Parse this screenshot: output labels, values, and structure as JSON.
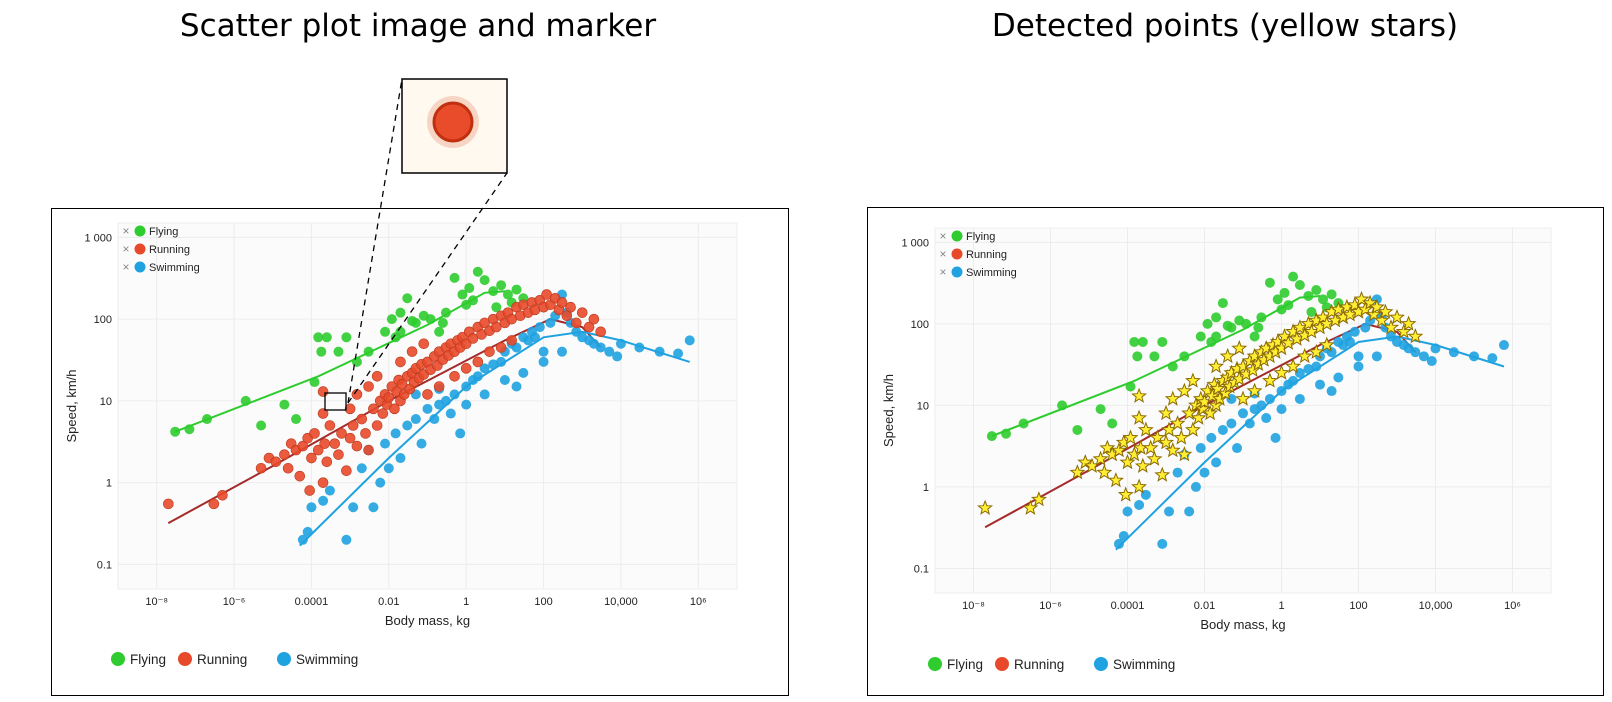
{
  "titles": {
    "left": "Scatter plot image and marker",
    "right": "Detected points (yellow stars)"
  },
  "colors": {
    "Flying": "#2ecc2e",
    "Running": "#e8492a",
    "Swimming": "#1fa2e0",
    "Running_fit": "#a52a2a",
    "star_fill": "#ffee33",
    "star_stroke": "#8b6a00"
  },
  "chart_data": [
    {
      "type": "scatter",
      "title": "",
      "xlabel": "Body mass, kg",
      "ylabel": "Speed, km/h",
      "xscale": "log",
      "yscale": "log",
      "xlim": [
        1e-09,
        10000000.0
      ],
      "ylim": [
        0.05,
        1500
      ],
      "x_ticks": [
        {
          "value": 1e-08,
          "label": "10⁻⁸"
        },
        {
          "value": 1e-06,
          "label": "10⁻⁶"
        },
        {
          "value": 0.0001,
          "label": "0.0001"
        },
        {
          "value": 0.01,
          "label": "0.01"
        },
        {
          "value": 1,
          "label": "1"
        },
        {
          "value": 100,
          "label": "100"
        },
        {
          "value": 10000,
          "label": "10,000"
        },
        {
          "value": 1000000.0,
          "label": "10⁶"
        }
      ],
      "y_ticks": [
        {
          "value": 0.1,
          "label": "0.1"
        },
        {
          "value": 1,
          "label": "1"
        },
        {
          "value": 10,
          "label": "10"
        },
        {
          "value": 100,
          "label": "100"
        },
        {
          "value": 1000,
          "label": "1 000"
        }
      ],
      "legend_position": "top-left",
      "grid": true,
      "series": [
        {
          "name": "Flying",
          "points": [
            [
              3e-08,
              4.2
            ],
            [
              7e-08,
              4.5
            ],
            [
              2e-07,
              6
            ],
            [
              2e-06,
              10
            ],
            [
              5e-06,
              5
            ],
            [
              2e-05,
              9
            ],
            [
              4e-05,
              6
            ],
            [
              0.00012,
              17
            ],
            [
              0.00018,
              40
            ],
            [
              0.00015,
              60
            ],
            [
              0.00025,
              60
            ],
            [
              0.0005,
              40
            ],
            [
              0.0008,
              60
            ],
            [
              0.0015,
              30
            ],
            [
              0.003,
              40
            ],
            [
              0.008,
              70
            ],
            [
              0.012,
              100
            ],
            [
              0.015,
              60
            ],
            [
              0.02,
              120
            ],
            [
              0.03,
              180
            ],
            [
              0.05,
              90
            ],
            [
              0.08,
              110
            ],
            [
              0.12,
              100
            ],
            [
              0.2,
              70
            ],
            [
              0.3,
              120
            ],
            [
              0.5,
              320
            ],
            [
              0.8,
              200
            ],
            [
              1.2,
              240
            ],
            [
              2,
              380
            ],
            [
              3,
              300
            ],
            [
              5,
              220
            ],
            [
              8,
              260
            ],
            [
              12,
              200
            ],
            [
              20,
              230
            ],
            [
              0.02,
              70
            ],
            [
              0.04,
              95
            ],
            [
              0.25,
              90
            ],
            [
              1.5,
              170
            ],
            [
              6,
              140
            ],
            [
              15,
              160
            ],
            [
              30,
              180
            ],
            [
              1.0,
              150
            ]
          ]
        },
        {
          "name": "Running",
          "points": [
            [
              2e-08,
              0.55
            ],
            [
              3e-07,
              0.55
            ],
            [
              5e-07,
              0.7
            ],
            [
              5e-06,
              1.5
            ],
            [
              8e-06,
              2
            ],
            [
              1.2e-05,
              1.8
            ],
            [
              2e-05,
              2.2
            ],
            [
              2.5e-05,
              1.5
            ],
            [
              3e-05,
              3
            ],
            [
              4e-05,
              2.5
            ],
            [
              5e-05,
              1.2
            ],
            [
              6e-05,
              2.8
            ],
            [
              8e-05,
              3.5
            ],
            [
              9e-05,
              0.8
            ],
            [
              0.0001,
              2
            ],
            [
              0.00012,
              4
            ],
            [
              0.00015,
              2.5
            ],
            [
              0.0002,
              13
            ],
            [
              0.0002,
              1
            ],
            [
              0.00022,
              3
            ],
            [
              0.00025,
              1.8
            ],
            [
              0.0003,
              5
            ],
            [
              0.0004,
              3
            ],
            [
              0.0005,
              2.2
            ],
            [
              0.0006,
              4
            ],
            [
              0.0008,
              1.4
            ],
            [
              0.001,
              3.5
            ],
            [
              0.0012,
              5
            ],
            [
              0.0015,
              2.8
            ],
            [
              0.002,
              6
            ],
            [
              0.0025,
              4
            ],
            [
              0.003,
              2.5
            ],
            [
              0.004,
              8
            ],
            [
              0.005,
              5
            ],
            [
              0.006,
              10
            ],
            [
              0.007,
              7
            ],
            [
              0.008,
              12
            ],
            [
              0.009,
              9
            ],
            [
              0.01,
              11
            ],
            [
              0.012,
              15
            ],
            [
              0.014,
              8
            ],
            [
              0.016,
              13
            ],
            [
              0.018,
              18
            ],
            [
              0.02,
              10
            ],
            [
              0.022,
              16
            ],
            [
              0.025,
              12
            ],
            [
              0.03,
              20
            ],
            [
              0.035,
              14
            ],
            [
              0.04,
              22
            ],
            [
              0.045,
              17
            ],
            [
              0.05,
              25
            ],
            [
              0.06,
              19
            ],
            [
              0.07,
              28
            ],
            [
              0.08,
              21
            ],
            [
              0.1,
              30
            ],
            [
              0.12,
              24
            ],
            [
              0.15,
              35
            ],
            [
              0.18,
              27
            ],
            [
              0.2,
              40
            ],
            [
              0.25,
              32
            ],
            [
              0.3,
              45
            ],
            [
              0.35,
              36
            ],
            [
              0.4,
              50
            ],
            [
              0.5,
              40
            ],
            [
              0.6,
              55
            ],
            [
              0.7,
              45
            ],
            [
              0.8,
              60
            ],
            [
              1,
              50
            ],
            [
              1.2,
              70
            ],
            [
              1.5,
              58
            ],
            [
              2,
              80
            ],
            [
              2.5,
              65
            ],
            [
              3,
              90
            ],
            [
              4,
              72
            ],
            [
              5,
              100
            ],
            [
              6,
              80
            ],
            [
              8,
              110
            ],
            [
              10,
              90
            ],
            [
              12,
              120
            ],
            [
              15,
              100
            ],
            [
              20,
              140
            ],
            [
              25,
              110
            ],
            [
              30,
              150
            ],
            [
              40,
              120
            ],
            [
              50,
              160
            ],
            [
              60,
              130
            ],
            [
              80,
              170
            ],
            [
              100,
              140
            ],
            [
              120,
              200
            ],
            [
              150,
              150
            ],
            [
              200,
              180
            ],
            [
              250,
              130
            ],
            [
              300,
              160
            ],
            [
              400,
              110
            ],
            [
              500,
              140
            ],
            [
              700,
              90
            ],
            [
              1000,
              120
            ],
            [
              1500,
              80
            ],
            [
              2000,
              100
            ],
            [
              3000,
              70
            ],
            [
              0.003,
              15
            ],
            [
              0.005,
              20
            ],
            [
              0.0002,
              7
            ],
            [
              0.001,
              8
            ],
            [
              0.0015,
              12
            ],
            [
              0.02,
              30
            ],
            [
              0.04,
              40
            ],
            [
              0.08,
              50
            ],
            [
              0.1,
              12
            ],
            [
              0.2,
              15
            ],
            [
              0.5,
              20
            ],
            [
              1,
              25
            ],
            [
              2,
              30
            ],
            [
              4,
              40
            ],
            [
              8,
              45
            ],
            [
              15,
              55
            ]
          ]
        },
        {
          "name": "Swimming",
          "points": [
            [
              6e-05,
              0.2
            ],
            [
              8e-05,
              0.25
            ],
            [
              0.0001,
              0.5
            ],
            [
              0.0002,
              0.6
            ],
            [
              0.0003,
              0.8
            ],
            [
              0.0008,
              0.2
            ],
            [
              0.0012,
              0.5
            ],
            [
              0.002,
              1.5
            ],
            [
              0.003,
              2.5
            ],
            [
              0.004,
              0.5
            ],
            [
              0.006,
              1
            ],
            [
              0.008,
              3
            ],
            [
              0.01,
              1.5
            ],
            [
              0.015,
              4
            ],
            [
              0.02,
              2
            ],
            [
              0.03,
              5
            ],
            [
              0.05,
              6
            ],
            [
              0.07,
              3
            ],
            [
              0.1,
              8
            ],
            [
              0.15,
              6
            ],
            [
              0.2,
              9
            ],
            [
              0.3,
              10
            ],
            [
              0.4,
              7
            ],
            [
              0.5,
              12
            ],
            [
              0.7,
              4
            ],
            [
              1,
              15
            ],
            [
              1.5,
              18
            ],
            [
              2,
              20
            ],
            [
              3,
              25
            ],
            [
              5,
              28
            ],
            [
              8,
              30
            ],
            [
              10,
              40
            ],
            [
              15,
              50
            ],
            [
              20,
              45
            ],
            [
              30,
              60
            ],
            [
              40,
              55
            ],
            [
              50,
              70
            ],
            [
              60,
              60
            ],
            [
              80,
              80
            ],
            [
              100,
              40
            ],
            [
              150,
              90
            ],
            [
              200,
              110
            ],
            [
              300,
              200
            ],
            [
              400,
              120
            ],
            [
              500,
              90
            ],
            [
              700,
              70
            ],
            [
              1000,
              60
            ],
            [
              1500,
              55
            ],
            [
              2000,
              50
            ],
            [
              3000,
              45
            ],
            [
              5000,
              40
            ],
            [
              8000,
              35
            ],
            [
              10000,
              50
            ],
            [
              30000,
              45
            ],
            [
              100000,
              40
            ],
            [
              300000,
              38
            ],
            [
              600000,
              55
            ],
            [
              0.05,
              12
            ],
            [
              0.2,
              14
            ],
            [
              1,
              9
            ],
            [
              3,
              12
            ],
            [
              10,
              18
            ],
            [
              30,
              22
            ],
            [
              100,
              30
            ],
            [
              300,
              40
            ],
            [
              20,
              15
            ]
          ]
        }
      ],
      "fit_lines": [
        {
          "name": "Flying",
          "points": [
            [
              3e-08,
              4.2
            ],
            [
              0.00015,
              20
            ],
            [
              0.1,
              85
            ],
            [
              3,
              210
            ],
            [
              10,
              220
            ]
          ]
        },
        {
          "name": "Running",
          "points": [
            [
              2e-08,
              0.32
            ],
            [
              1e-05,
              1.6
            ],
            [
              0.01,
              10
            ],
            [
              10,
              55
            ],
            [
              150,
              100
            ],
            [
              1000,
              80
            ],
            [
              3000,
              45
            ]
          ]
        },
        {
          "name": "Swimming",
          "points": [
            [
              5e-05,
              0.17
            ],
            [
              0.01,
              2
            ],
            [
              1,
              15
            ],
            [
              100,
              60
            ],
            [
              1000,
              70
            ],
            [
              10000,
              55
            ],
            [
              600000,
              30
            ]
          ]
        }
      ]
    }
  ],
  "legend": {
    "top": [
      "Flying",
      "Running",
      "Swimming"
    ],
    "bottom": [
      "Flying",
      "Running",
      "Swimming"
    ],
    "x_mark": "×"
  }
}
